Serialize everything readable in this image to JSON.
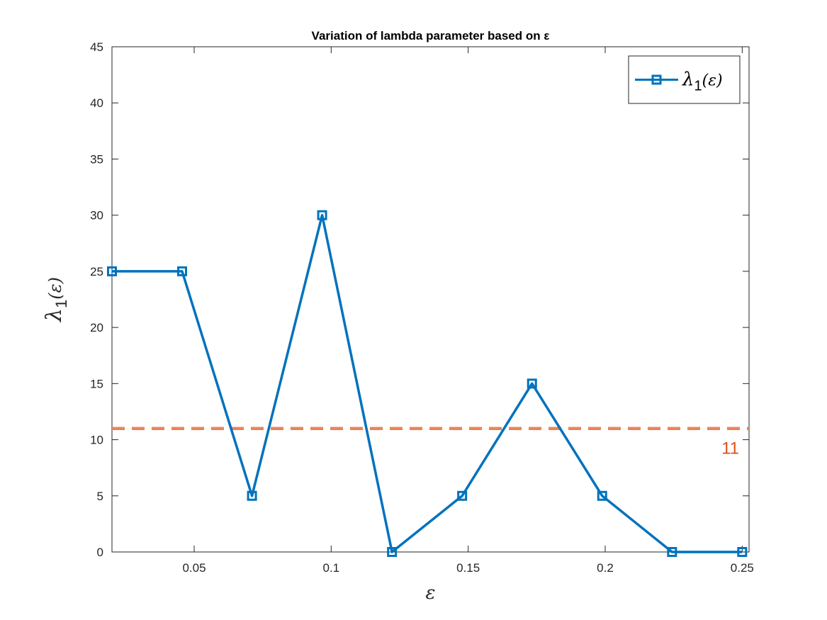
{
  "chart_data": {
    "type": "line",
    "title": "Variation of lambda parameter based on ε",
    "xlabel": "ε",
    "ylabel": "λ1(ε)",
    "xlim": [
      0.02,
      0.2525
    ],
    "ylim": [
      0,
      45
    ],
    "xticks": [
      0.05,
      0.1,
      0.15,
      0.2,
      0.25
    ],
    "xtick_labels": [
      "0.05",
      "0.1",
      "0.15",
      "0.2",
      "0.25"
    ],
    "yticks": [
      0,
      5,
      10,
      15,
      20,
      25,
      30,
      35,
      40,
      45
    ],
    "ytick_labels": [
      "0",
      "5",
      "10",
      "15",
      "20",
      "25",
      "30",
      "35",
      "40",
      "45"
    ],
    "grid": false,
    "legend_position": "top-right",
    "series": [
      {
        "name": "λ1(ε)",
        "color": "#0072BD",
        "marker": "square",
        "x": [
          0.02,
          0.0456,
          0.0711,
          0.0967,
          0.1222,
          0.1478,
          0.1733,
          0.1989,
          0.2244,
          0.25
        ],
        "y": [
          25,
          25,
          5,
          30,
          0,
          5,
          15,
          5,
          0,
          0
        ]
      }
    ],
    "reference_line": {
      "y": 11,
      "label": "11",
      "color": "#D95319",
      "line_color": "#E8845A",
      "style": "dashed"
    }
  }
}
